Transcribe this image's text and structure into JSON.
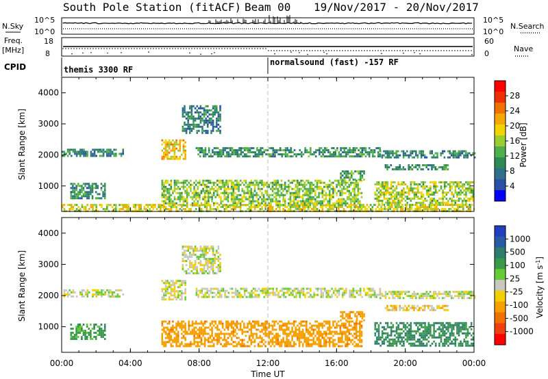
{
  "header": {
    "station": "South Pole Station (fitACF)",
    "beam": "Beam 00",
    "date_range": "19/Nov/2017 - 20/Nov/2017"
  },
  "status_panels": {
    "nsky_label": "N.Sky",
    "nsearch_label": "N.Search",
    "noise_tick_top": "10^5",
    "noise_tick_bottom": "10^0",
    "freq_label": "Freq.",
    "freq_unit": "[MHz]",
    "freq_ticks": [
      "18",
      "8"
    ],
    "nave_label": "Nave",
    "nave_ticks": [
      "60",
      "0"
    ],
    "cpid_label": "CPID",
    "cpid_segments": [
      {
        "start_hour": 0,
        "end_hour": 12,
        "label": "themis 3300 RF"
      },
      {
        "start_hour": 12,
        "end_hour": 24,
        "label": "normalsound (fast) -157 RF"
      }
    ]
  },
  "colors": {
    "power_scale": [
      "#0000ff",
      "#2a50a8",
      "#2f6f8c",
      "#2e8b57",
      "#4fb04a",
      "#9acd32",
      "#f2d500",
      "#f5a800",
      "#f07000",
      "#f03000",
      "#ff0000"
    ],
    "velocity_scale": [
      "#2040c0",
      "#2a5aa6",
      "#2e7d6e",
      "#3a9a4a",
      "#66cc33",
      "#c8c8c0",
      "#f0d000",
      "#f5a000",
      "#f07000",
      "#f04010",
      "#ff0000"
    ]
  },
  "chart_data": [
    {
      "type": "heatmap",
      "name": "power",
      "ylabel": "Slant Range [km]",
      "x_ticks": [
        "00:00",
        "04:00",
        "08:00",
        "12:00",
        "16:00",
        "20:00",
        "00:00"
      ],
      "x_range_hours": [
        0,
        24
      ],
      "ylim": [
        180,
        4500
      ],
      "y_ticks": [
        1000,
        2000,
        3000,
        4000
      ],
      "colorbar": {
        "label": "Power [dB]",
        "ticks": [
          4,
          8,
          12,
          16,
          20,
          24,
          28
        ],
        "range": [
          0,
          30
        ]
      },
      "regions": [
        {
          "hours": [
            0.0,
            3.6
          ],
          "range_km": [
            1950,
            2200
          ],
          "value": 8
        },
        {
          "hours": [
            5.8,
            7.2
          ],
          "range_km": [
            1850,
            2500
          ],
          "value": 19
        },
        {
          "hours": [
            7.0,
            9.2
          ],
          "range_km": [
            2700,
            3600
          ],
          "value": 7
        },
        {
          "hours": [
            7.8,
            18.5
          ],
          "range_km": [
            1950,
            2250
          ],
          "value": 9
        },
        {
          "hours": [
            18.5,
            24.0
          ],
          "range_km": [
            1950,
            2150
          ],
          "value": 8
        },
        {
          "hours": [
            18.8,
            22.5
          ],
          "range_km": [
            1550,
            1700
          ],
          "value": 9
        },
        {
          "hours": [
            0.5,
            2.5
          ],
          "range_km": [
            600,
            1100
          ],
          "value": 9
        },
        {
          "hours": [
            5.8,
            17.5
          ],
          "range_km": [
            400,
            1200
          ],
          "value": 14
        },
        {
          "hours": [
            16.2,
            17.6
          ],
          "range_km": [
            1200,
            1500
          ],
          "value": 11
        },
        {
          "hours": [
            18.2,
            24.0
          ],
          "range_km": [
            400,
            1150
          ],
          "value": 15
        },
        {
          "hours": [
            0.0,
            24.0
          ],
          "range_km": [
            180,
            420
          ],
          "value": 17
        }
      ]
    },
    {
      "type": "heatmap",
      "name": "velocity",
      "ylabel": "Slant Range [km]",
      "xlabel": "Time UT",
      "x_ticks": [
        "00:00",
        "04:00",
        "08:00",
        "12:00",
        "16:00",
        "20:00",
        "00:00"
      ],
      "x_range_hours": [
        0,
        24
      ],
      "ylim": [
        180,
        4500
      ],
      "y_ticks": [
        1000,
        2000,
        3000,
        4000
      ],
      "colorbar": {
        "label": "Velocity [m s^-1]",
        "ticks": [
          1000,
          500,
          100,
          25,
          -25,
          -100,
          -500,
          -1000
        ]
      },
      "regions": [
        {
          "hours": [
            0.0,
            3.6
          ],
          "range_km": [
            1950,
            2200
          ],
          "value": 0
        },
        {
          "hours": [
            5.8,
            7.2
          ],
          "range_km": [
            1850,
            2500
          ],
          "value": 0
        },
        {
          "hours": [
            7.0,
            9.2
          ],
          "range_km": [
            2700,
            3600
          ],
          "value": 0
        },
        {
          "hours": [
            7.8,
            18.5
          ],
          "range_km": [
            1950,
            2250
          ],
          "value": 0
        },
        {
          "hours": [
            18.5,
            24.0
          ],
          "range_km": [
            1950,
            2150
          ],
          "value": 0
        },
        {
          "hours": [
            18.8,
            22.5
          ],
          "range_km": [
            1550,
            1700
          ],
          "value": -50
        },
        {
          "hours": [
            0.5,
            2.5
          ],
          "range_km": [
            600,
            1100
          ],
          "value": 100
        },
        {
          "hours": [
            5.8,
            17.5
          ],
          "range_km": [
            400,
            1200
          ],
          "value": -150
        },
        {
          "hours": [
            16.2,
            17.6
          ],
          "range_km": [
            1200,
            1500
          ],
          "value": -150
        },
        {
          "hours": [
            18.2,
            24.0
          ],
          "range_km": [
            400,
            1150
          ],
          "value": 150
        }
      ]
    }
  ]
}
